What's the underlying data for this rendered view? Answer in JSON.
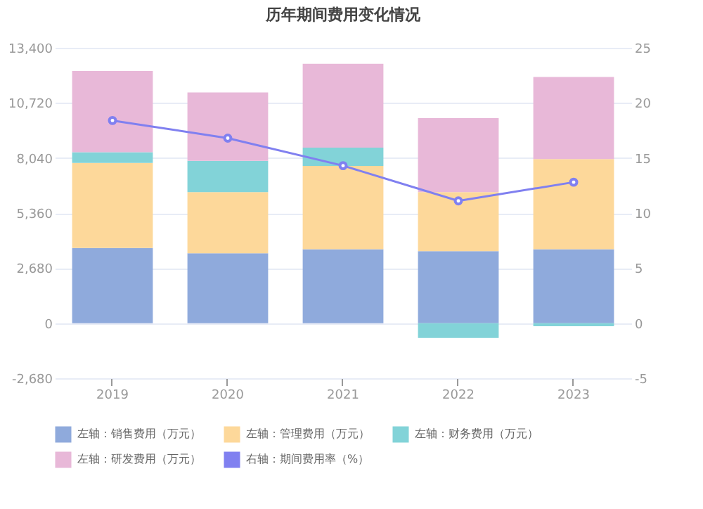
{
  "chart_data": {
    "type": "bar",
    "title": "历年期间费用变化情况",
    "categories": [
      "2019",
      "2020",
      "2021",
      "2022",
      "2023"
    ],
    "stacked": true,
    "series": [
      {
        "name": "左轴：销售费用（万元）",
        "color": "#8faadc",
        "values": [
          3660,
          3400,
          3600,
          3500,
          3600
        ]
      },
      {
        "name": "左轴：管理费用（万元）",
        "color": "#fdd89a",
        "values": [
          4140,
          2980,
          4050,
          2880,
          4390
        ]
      },
      {
        "name": "左轴：财务费用（万元）",
        "color": "#82d3d8",
        "values": [
          520,
          1520,
          890,
          -720,
          -150
        ]
      },
      {
        "name": "左轴：研发费用（万元）",
        "color": "#e8b8d8",
        "values": [
          3950,
          3330,
          4080,
          3600,
          3990
        ]
      },
      {
        "name": "右轴：期间费用率（%）",
        "type": "line",
        "axis": "y2",
        "color": "#8080f0",
        "marker": "circle",
        "values": [
          18.4,
          16.8,
          14.3,
          11.1,
          12.8
        ]
      }
    ],
    "ylim": [
      -2680,
      13400
    ],
    "yticks": [
      {
        "value": -2680,
        "label": "-2,680"
      },
      0,
      {
        "value": 2680,
        "label": "2,680"
      },
      {
        "value": 5360,
        "label": "5,360"
      },
      {
        "value": 8040,
        "label": "8,040"
      },
      {
        "value": 10720,
        "label": "10,720"
      },
      {
        "value": 13400,
        "label": "13,400"
      }
    ],
    "y2lim": [
      -5,
      25
    ],
    "y2ticks": [
      -5,
      0,
      5,
      10,
      15,
      20,
      25
    ],
    "grid": "y",
    "legend": "bottom"
  }
}
